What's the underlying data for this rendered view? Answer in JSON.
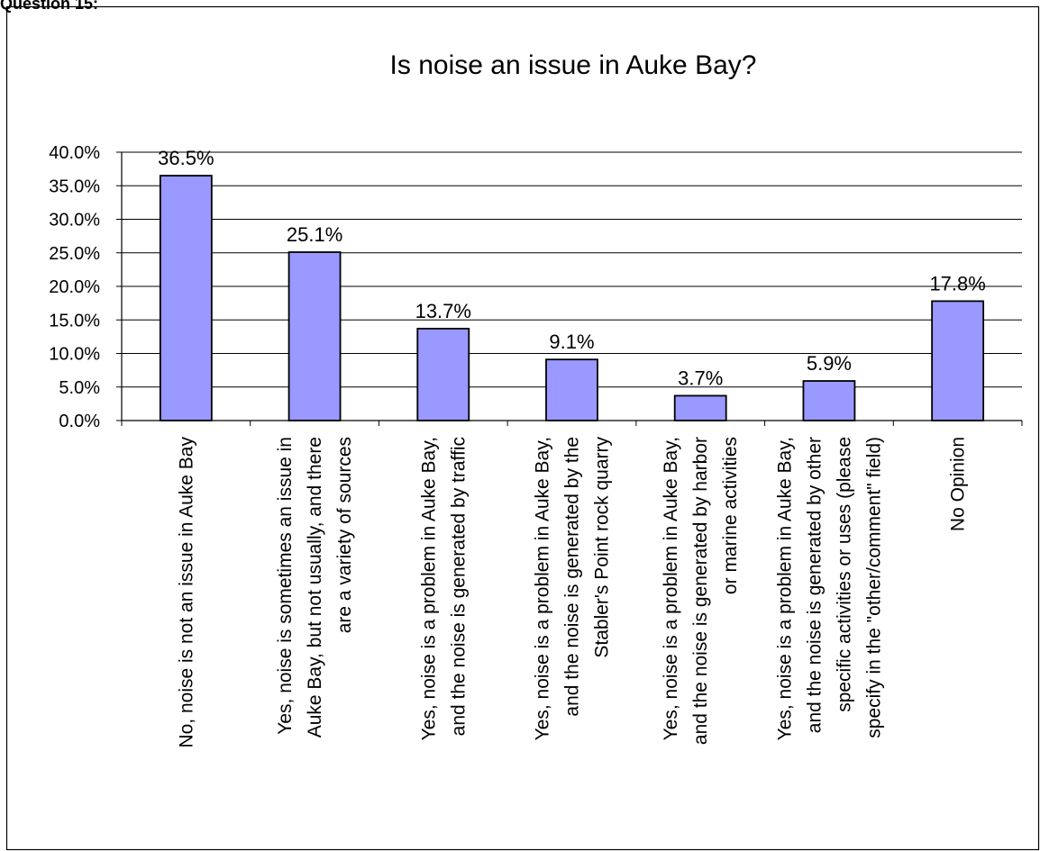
{
  "page_header": "Question 15:",
  "chart_data": {
    "type": "bar",
    "title": "Is noise an issue in Auke Bay?",
    "xlabel": "",
    "ylabel": "",
    "ylim": [
      0,
      40
    ],
    "yticks": [
      "0.0%",
      "5.0%",
      "10.0%",
      "15.0%",
      "20.0%",
      "25.0%",
      "30.0%",
      "35.0%",
      "40.0%"
    ],
    "grid": true,
    "legend": "none",
    "bar_color": "#9999ff",
    "categories": [
      [
        "No, noise is not an issue in Auke Bay"
      ],
      [
        "Yes, noise is sometimes an issue in",
        "Auke Bay, but not usually, and there",
        "are a variety of sources"
      ],
      [
        "Yes, noise is a problem in Auke Bay,",
        "and the noise is generated by traffic"
      ],
      [
        "Yes, noise is a problem in Auke Bay,",
        "and the noise is generated by the",
        "Stabler's Point rock quarry"
      ],
      [
        "Yes, noise is a problem in Auke Bay,",
        "and the noise is generated by harbor",
        "or marine activities"
      ],
      [
        "Yes, noise is a problem in Auke Bay,",
        "and the noise is generated by other",
        "specific activities or uses (please",
        "specify in the \"other/comment\" field)"
      ],
      [
        "No Opinion"
      ]
    ],
    "values": [
      36.5,
      25.1,
      13.7,
      9.1,
      3.7,
      5.9,
      17.8
    ],
    "data_labels": [
      "36.5%",
      "25.1%",
      "13.7%",
      "9.1%",
      "3.7%",
      "5.9%",
      "17.8%"
    ]
  }
}
